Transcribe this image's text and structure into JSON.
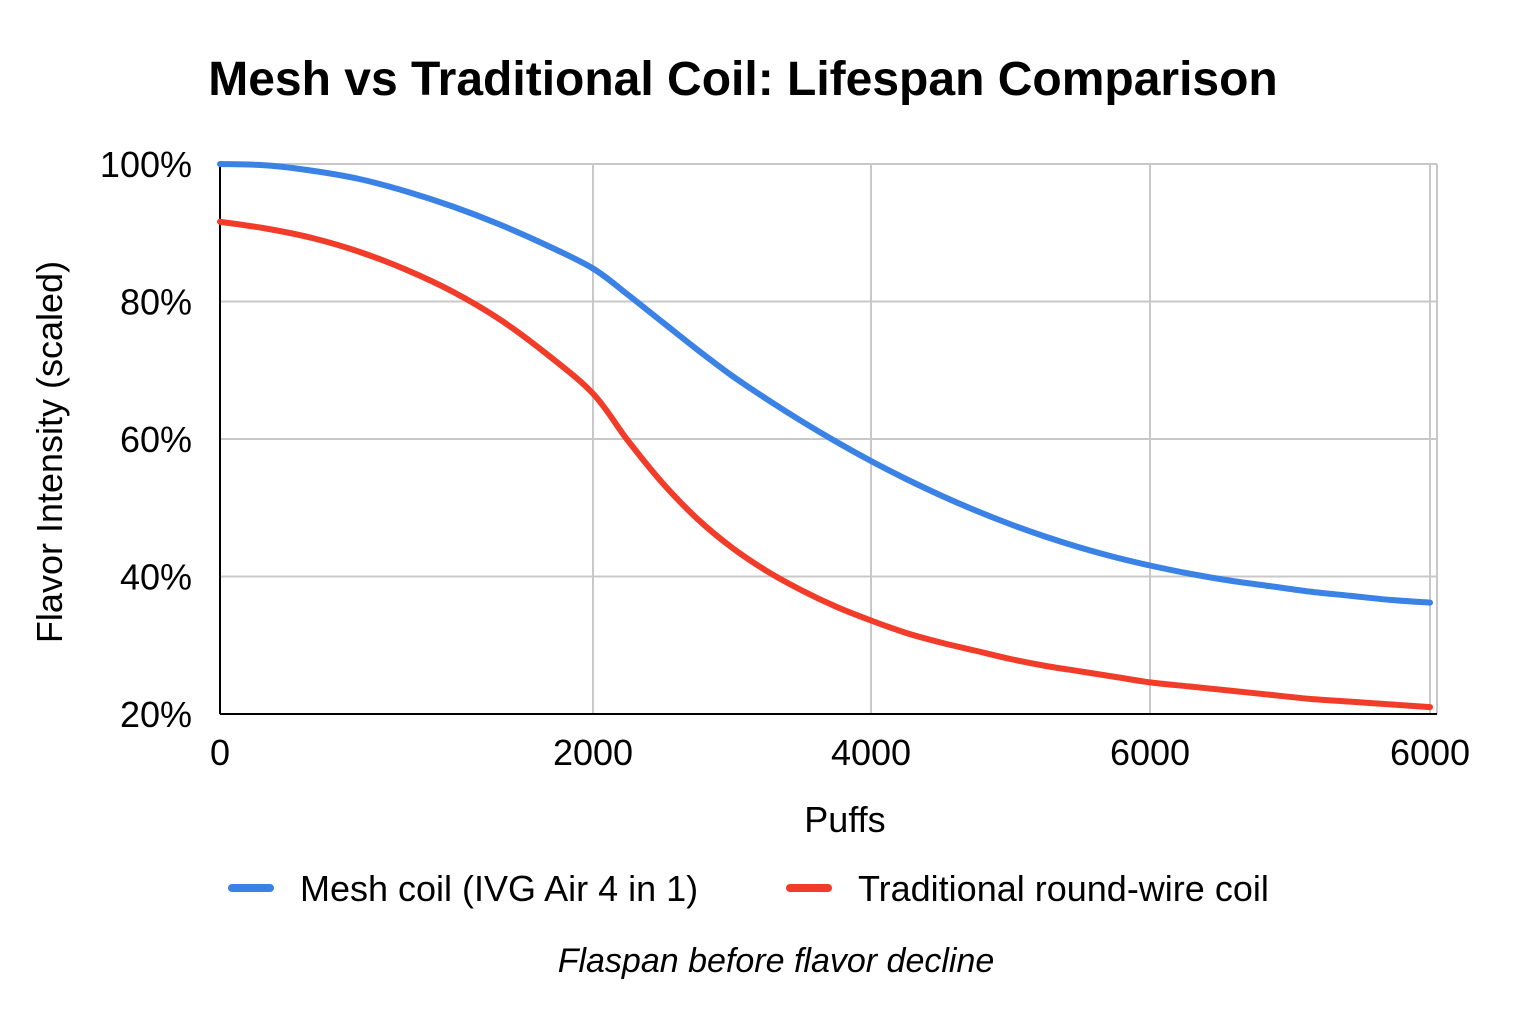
{
  "chart_data": {
    "type": "line",
    "title": "Mesh vs Traditional Coil: Lifespan Comparison",
    "xlabel": "Puffs",
    "ylabel": "Flavor Intensity (scaled)",
    "caption": "Flaspan before flavor decline",
    "x_ticks": [
      "0",
      "2000",
      "4000",
      "6000",
      "6000"
    ],
    "y_ticks": [
      "20%",
      "40%",
      "60%",
      "80%",
      "100%"
    ],
    "ylim": [
      20,
      100
    ],
    "grid": true,
    "legend_position": "bottom",
    "series": [
      {
        "name": "Mesh coil (IVG Air 4 in 1)",
        "color": "#3b82e6",
        "points": [
          [
            0,
            100
          ],
          [
            0.25,
            99.8
          ],
          [
            0.5,
            99.0
          ],
          [
            0.75,
            97.8
          ],
          [
            1.0,
            96.0
          ],
          [
            1.25,
            93.8
          ],
          [
            1.5,
            91.2
          ],
          [
            1.75,
            88.2
          ],
          [
            2.0,
            84.8
          ],
          [
            2.25,
            81.0
          ],
          [
            2.5,
            77.0
          ],
          [
            2.75,
            73.0
          ],
          [
            3.0,
            69.2
          ],
          [
            3.25,
            65.8
          ],
          [
            3.5,
            62.6
          ],
          [
            3.75,
            59.6
          ],
          [
            4.0,
            56.8
          ],
          [
            4.25,
            54.2
          ],
          [
            4.5,
            51.8
          ],
          [
            4.75,
            49.6
          ],
          [
            5.0,
            47.6
          ],
          [
            5.25,
            45.8
          ],
          [
            5.5,
            44.2
          ],
          [
            5.75,
            42.8
          ],
          [
            6.0,
            41.6
          ],
          [
            6.25,
            40.4
          ],
          [
            6.5,
            39.4
          ],
          [
            6.75,
            38.6
          ],
          [
            7.0,
            37.8
          ],
          [
            7.25,
            37.2
          ],
          [
            7.5,
            36.6
          ],
          [
            7.75,
            36.2
          ]
        ]
      },
      {
        "name": "Traditional round-wire coil",
        "color": "#f23c2a",
        "points": [
          [
            0,
            91.6
          ],
          [
            0.25,
            90.6
          ],
          [
            0.5,
            89.2
          ],
          [
            0.75,
            87.2
          ],
          [
            1.0,
            84.6
          ],
          [
            1.25,
            81.4
          ],
          [
            1.5,
            77.4
          ],
          [
            1.75,
            72.4
          ],
          [
            2.0,
            66.6
          ],
          [
            2.25,
            59.8
          ],
          [
            2.5,
            53.6
          ],
          [
            2.75,
            48.4
          ],
          [
            3.0,
            44.2
          ],
          [
            3.25,
            40.8
          ],
          [
            3.5,
            38.0
          ],
          [
            3.75,
            35.6
          ],
          [
            4.0,
            33.6
          ],
          [
            4.25,
            31.8
          ],
          [
            4.5,
            30.4
          ],
          [
            4.75,
            29.2
          ],
          [
            5.0,
            28.0
          ],
          [
            5.25,
            27.0
          ],
          [
            5.5,
            26.2
          ],
          [
            5.75,
            25.4
          ],
          [
            6.0,
            24.6
          ],
          [
            6.25,
            24.0
          ],
          [
            6.5,
            23.4
          ],
          [
            6.75,
            22.8
          ],
          [
            7.0,
            22.2
          ],
          [
            7.25,
            21.8
          ],
          [
            7.5,
            21.4
          ],
          [
            7.75,
            21.0
          ]
        ]
      }
    ]
  }
}
